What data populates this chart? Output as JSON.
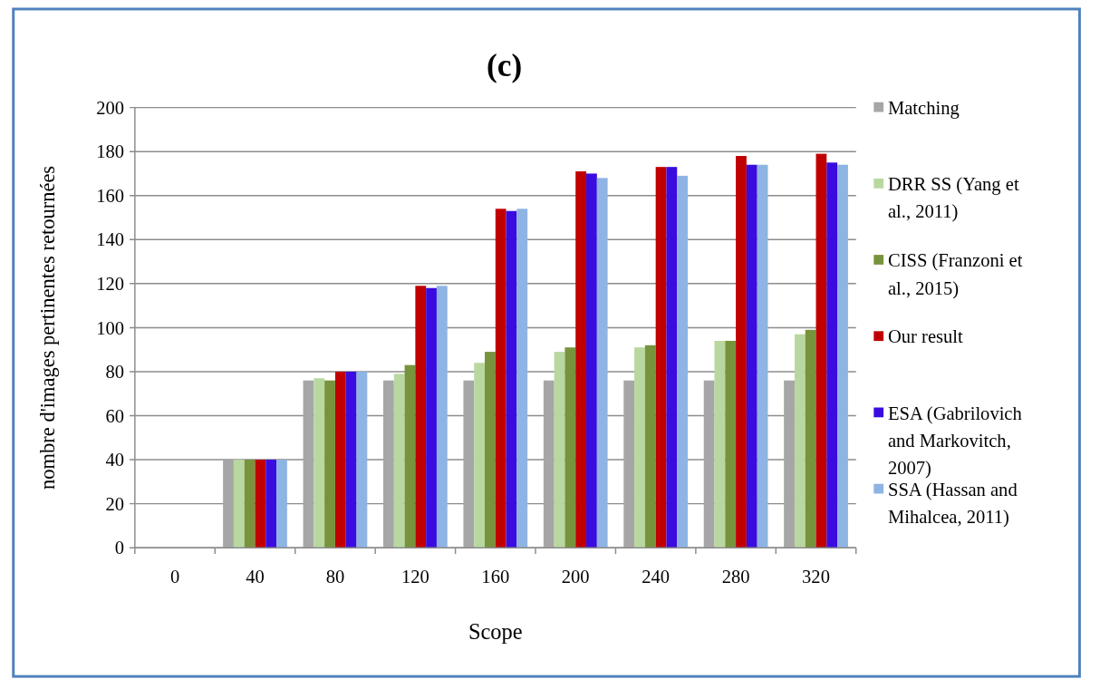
{
  "chart_data": {
    "type": "bar",
    "title": "(c)",
    "xlabel": "Scope",
    "ylabel": "nombre d'images  pertinentes  retournées",
    "categories": [
      "0",
      "40",
      "80",
      "120",
      "160",
      "200",
      "240",
      "280",
      "320"
    ],
    "series": [
      {
        "name": "Matching",
        "color": "#a6a6a6",
        "values": [
          0,
          40,
          76,
          76,
          76,
          76,
          76,
          76,
          76
        ]
      },
      {
        "name": "DRR SS (Yang et al., 2011)",
        "color": "#b8d8a0",
        "values": [
          0,
          40,
          77,
          79,
          84,
          89,
          91,
          94,
          97
        ]
      },
      {
        "name": "CISS (Franzoni et al., 2015)",
        "color": "#77933c",
        "values": [
          0,
          40,
          76,
          83,
          89,
          91,
          92,
          94,
          99
        ]
      },
      {
        "name": "Our result",
        "color": "#c00000",
        "values": [
          0,
          40,
          80,
          119,
          154,
          171,
          173,
          178,
          179
        ]
      },
      {
        "name": "ESA (Gabrilovich and Markovitch, 2007)",
        "color": "#3a0ce0",
        "values": [
          0,
          40,
          80,
          118,
          153,
          170,
          173,
          174,
          175
        ]
      },
      {
        "name": "SSA (Hassan and Mihalcea, 2011)",
        "color": "#8eb4e3",
        "values": [
          0,
          40,
          80,
          119,
          154,
          168,
          169,
          174,
          174
        ]
      }
    ],
    "ylim": [
      0,
      200
    ],
    "yticks": [
      0,
      20,
      40,
      60,
      80,
      100,
      120,
      140,
      160,
      180,
      200
    ],
    "grid": "y",
    "legend": "right"
  }
}
